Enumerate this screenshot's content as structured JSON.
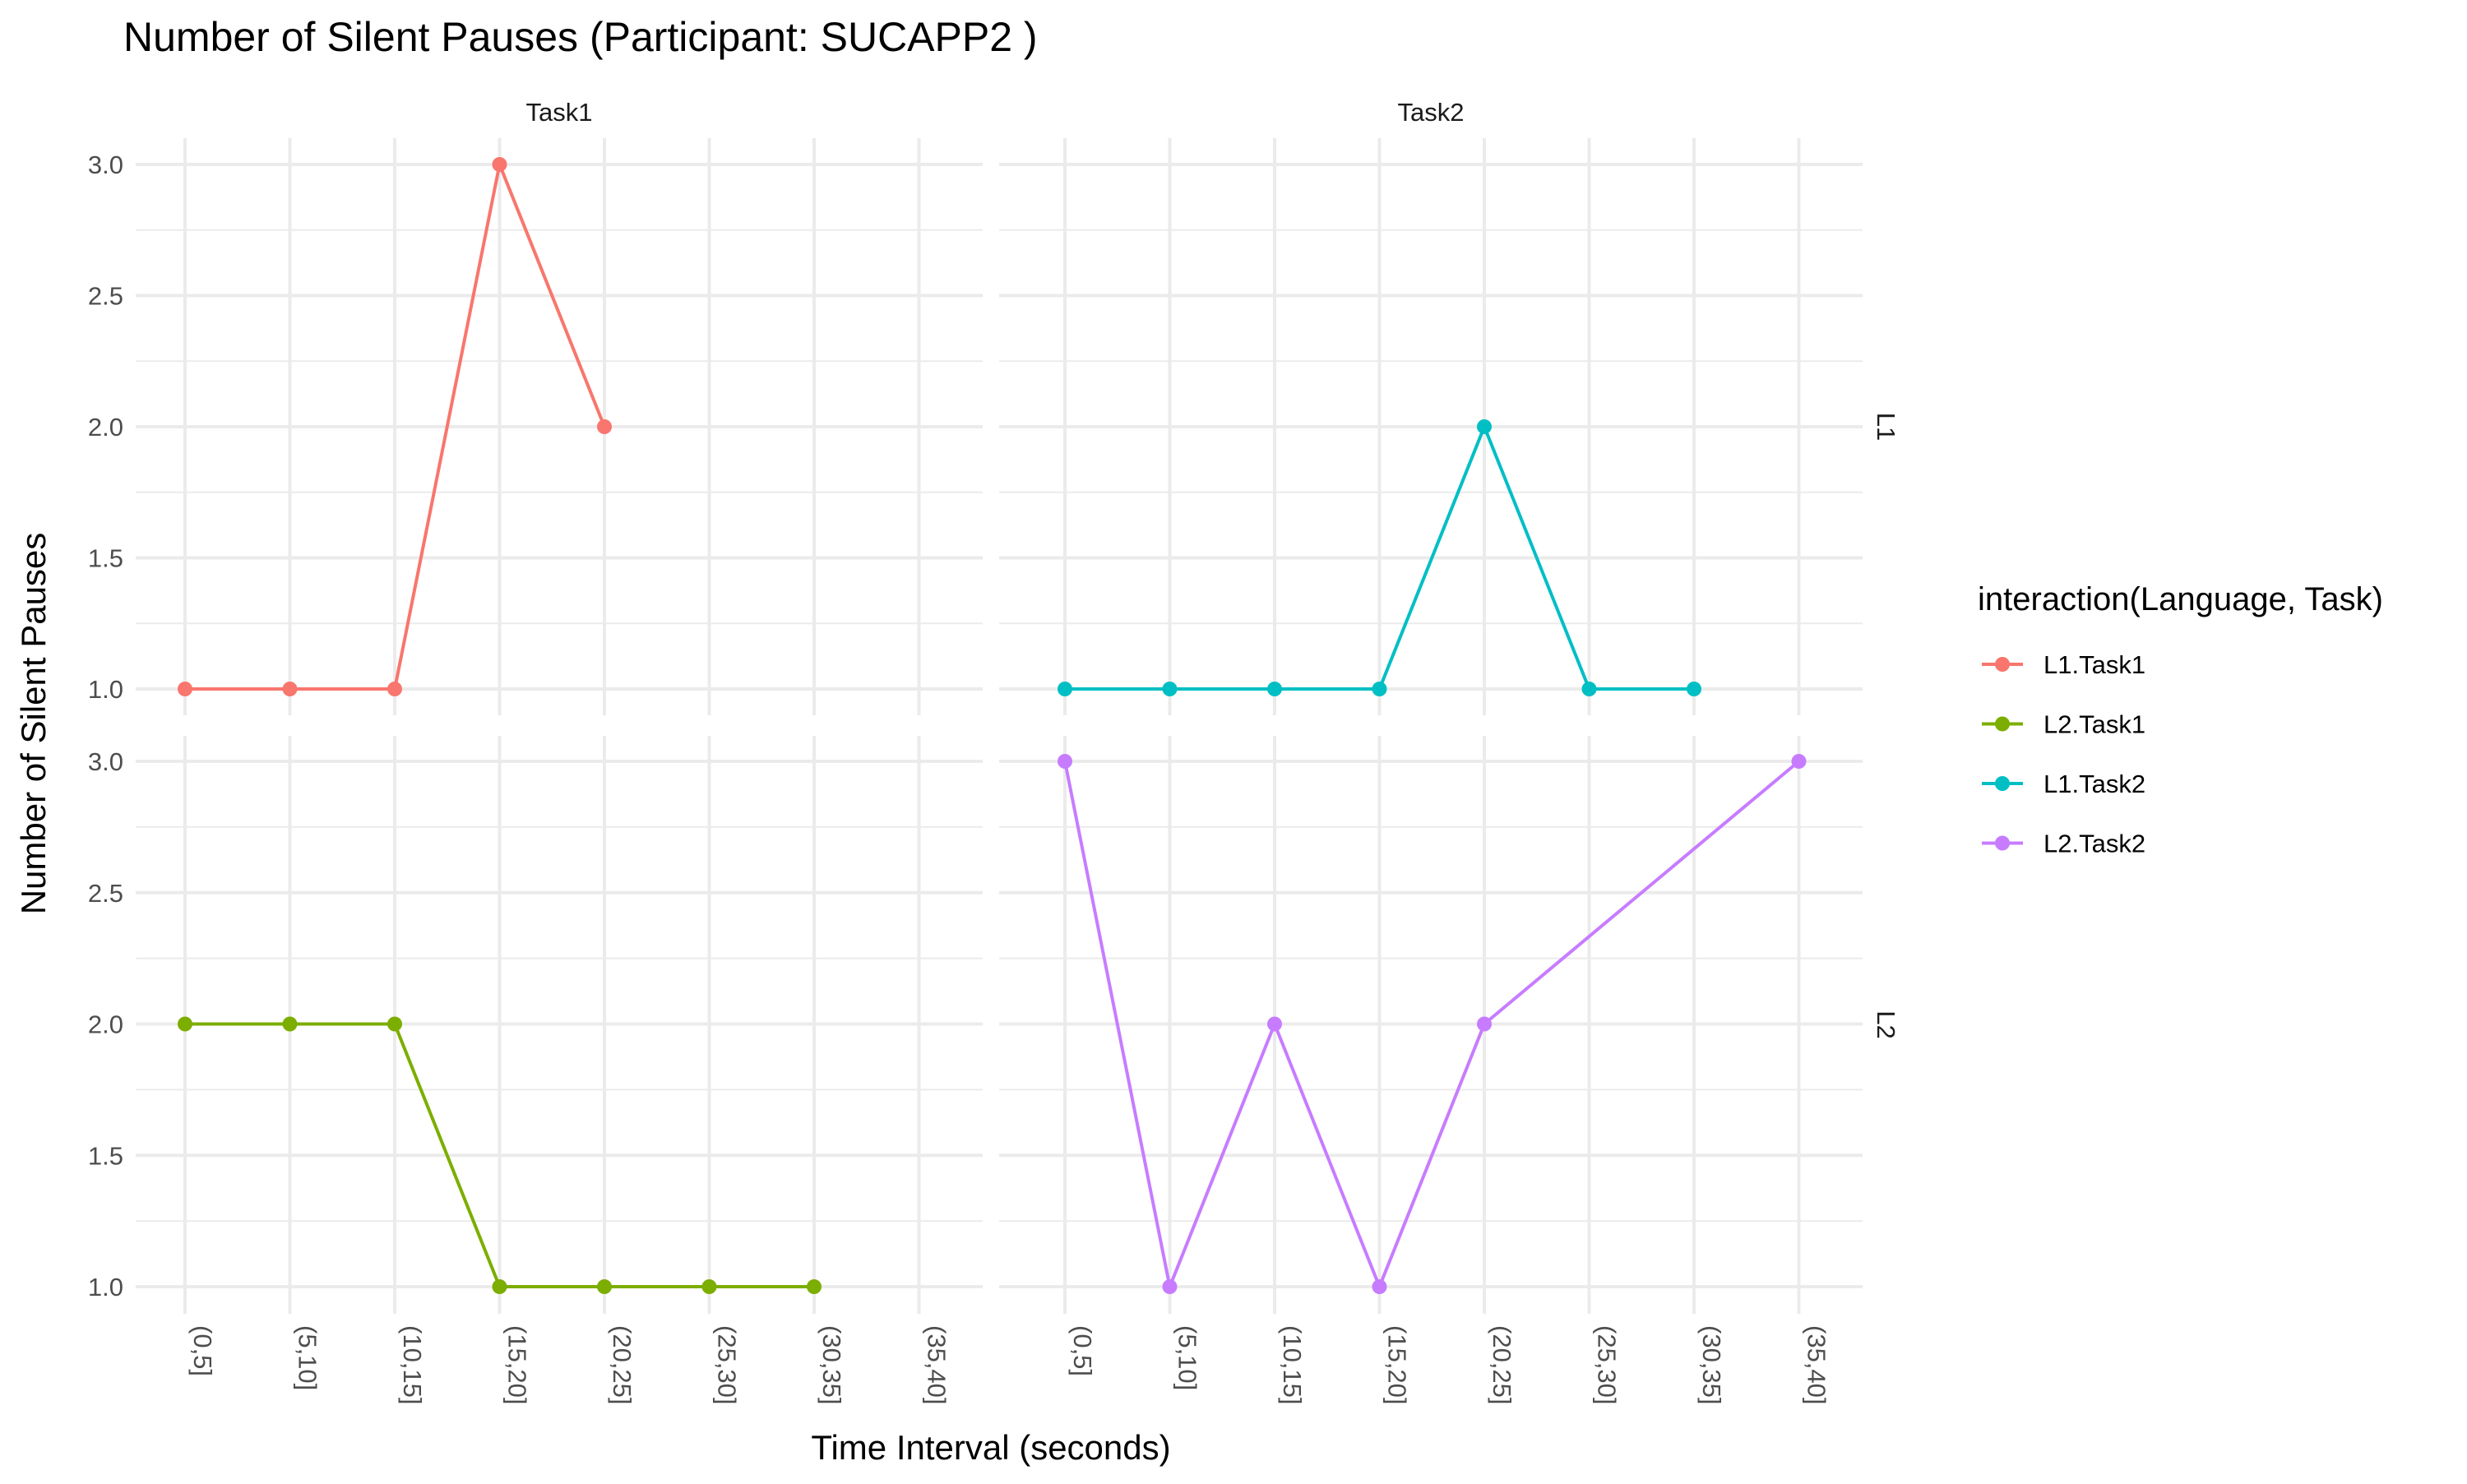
{
  "chart_data": {
    "type": "line",
    "title": "Number of Silent Pauses (Participant: SUCAPP2 )",
    "xlabel": "Time Interval (seconds)",
    "ylabel": "Number of Silent Pauses",
    "categories": [
      "(0,5]",
      "(5,10]",
      "(10,15]",
      "(15,20]",
      "(20,25]",
      "(25,30]",
      "(30,35]",
      "(35,40]"
    ],
    "y_ticks": [
      "1.0",
      "1.5",
      "2.0",
      "2.5",
      "3.0"
    ],
    "ylim": [
      1,
      3
    ],
    "facet_columns": [
      "Task1",
      "Task2"
    ],
    "facet_rows": [
      "L1",
      "L2"
    ],
    "grid": true,
    "legend": {
      "title": "interaction(Language, Task)",
      "position": "right",
      "entries": [
        "L1.Task1",
        "L2.Task1",
        "L1.Task2",
        "L2.Task2"
      ]
    },
    "series": [
      {
        "name": "L1.Task1",
        "color": "#F8766D",
        "row": 0,
        "col": 0,
        "values": [
          1,
          1,
          1,
          3,
          2,
          null,
          null,
          null
        ]
      },
      {
        "name": "L2.Task1",
        "color": "#7CAE00",
        "row": 1,
        "col": 0,
        "values": [
          2,
          2,
          2,
          1,
          1,
          1,
          1,
          null
        ]
      },
      {
        "name": "L1.Task2",
        "color": "#00BFC4",
        "row": 0,
        "col": 1,
        "values": [
          1,
          1,
          1,
          1,
          2,
          1,
          1,
          null
        ]
      },
      {
        "name": "L2.Task2",
        "color": "#C77CFF",
        "row": 1,
        "col": 1,
        "values": [
          3,
          1,
          2,
          1,
          2,
          null,
          null,
          3
        ]
      }
    ]
  }
}
